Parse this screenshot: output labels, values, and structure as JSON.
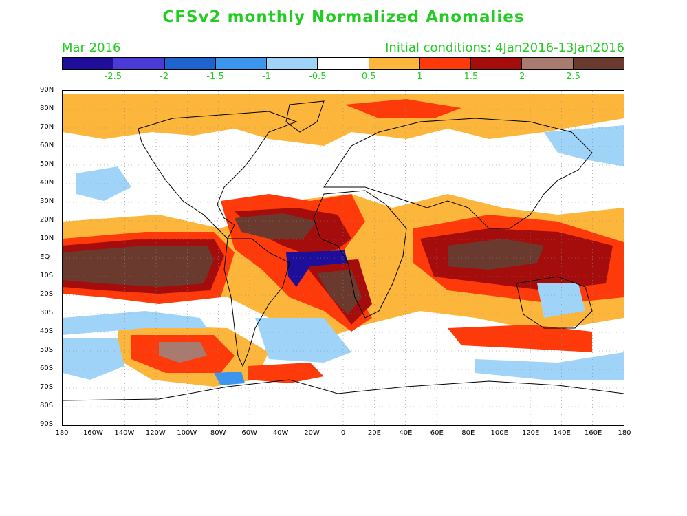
{
  "header": {
    "title": "CFSv2 monthly Normalized Anomalies",
    "period": "Mar 2016",
    "initial_conditions": "Initial conditions: 4Jan2016-13Jan2016"
  },
  "colorbar": {
    "colors": [
      "#1e0e9a",
      "#4a3ad6",
      "#1d64cf",
      "#3c96ee",
      "#9fd3f7",
      "#ffffff",
      "#fbb63b",
      "#ff3a0a",
      "#a50d0d",
      "#a97a70",
      "#6b3a2f"
    ],
    "labels": [
      "-2.5",
      "-2",
      "-1.5",
      "-1",
      "-0.5",
      "0.5",
      "1",
      "1.5",
      "2",
      "2.5"
    ]
  },
  "axes": {
    "lat_labels": [
      "90N",
      "80N",
      "70N",
      "60N",
      "50N",
      "40N",
      "30N",
      "20N",
      "10N",
      "EQ",
      "10S",
      "20S",
      "30S",
      "40S",
      "50S",
      "60S",
      "70S",
      "80S",
      "90S"
    ],
    "lon_labels": [
      "180",
      "160W",
      "140W",
      "120W",
      "100W",
      "80W",
      "60W",
      "40W",
      "20W",
      "0",
      "20E",
      "40E",
      "60E",
      "80E",
      "100E",
      "120E",
      "140E",
      "160E",
      "180"
    ]
  }
}
